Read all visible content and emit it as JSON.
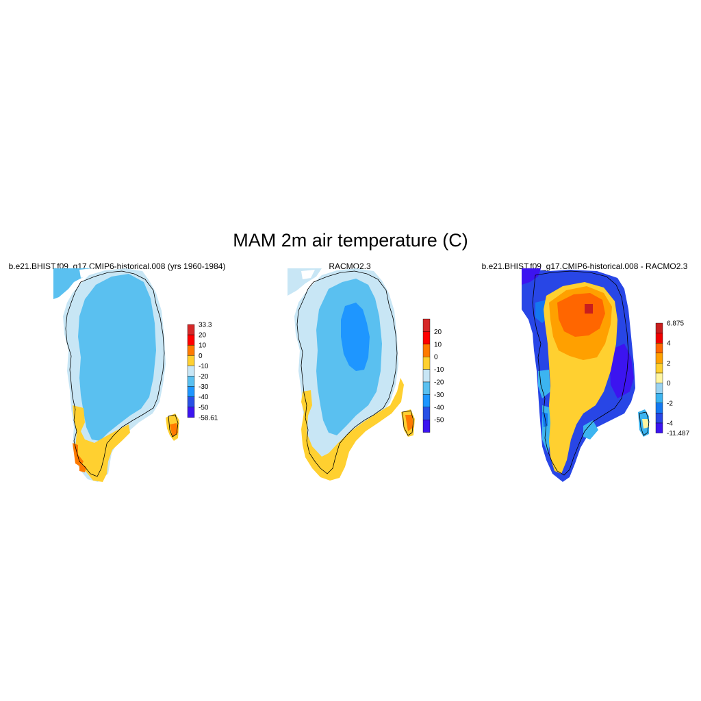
{
  "title": "MAM 2m air temperature (C)",
  "panels": [
    {
      "title": "b.e21.BHIST.f09_g17.CMIP6-historical.008 (yrs 1960-1984)",
      "colorbar": {
        "labels": [
          "33.3",
          "20",
          "10",
          "0",
          "-10",
          "-20",
          "-30",
          "-40",
          "-50",
          "-58.61"
        ],
        "colors": [
          "#d62828",
          "#ff0000",
          "#ff7a00",
          "#ffd030",
          "#c8e6f5",
          "#5ac0f0",
          "#1e96ff",
          "#2850e6",
          "#3c14f0"
        ]
      }
    },
    {
      "title": "RACMO2.3",
      "colorbar": {
        "labels": [
          "20",
          "10",
          "0",
          "-10",
          "-20",
          "-30",
          "-40",
          "-50"
        ],
        "colors": [
          "#d62828",
          "#ff0000",
          "#ff7a00",
          "#ffd030",
          "#c8e6f5",
          "#5ac0f0",
          "#1e96ff",
          "#2850e6",
          "#3c14f0"
        ]
      }
    },
    {
      "title": "b.e21.BHIST.f09_g17.CMIP6-historical.008 - RACMO2.3",
      "colorbar": {
        "labels": [
          "6.875",
          "4",
          "2",
          "0",
          "-2",
          "-4",
          "-11.487"
        ],
        "colors": [
          "#c81e1e",
          "#f00000",
          "#ff6600",
          "#ffa000",
          "#ffd030",
          "#fff5a0",
          "#9ad2f0",
          "#3cb4f0",
          "#1478f0",
          "#2846e6",
          "#3c14f0"
        ]
      }
    }
  ]
}
